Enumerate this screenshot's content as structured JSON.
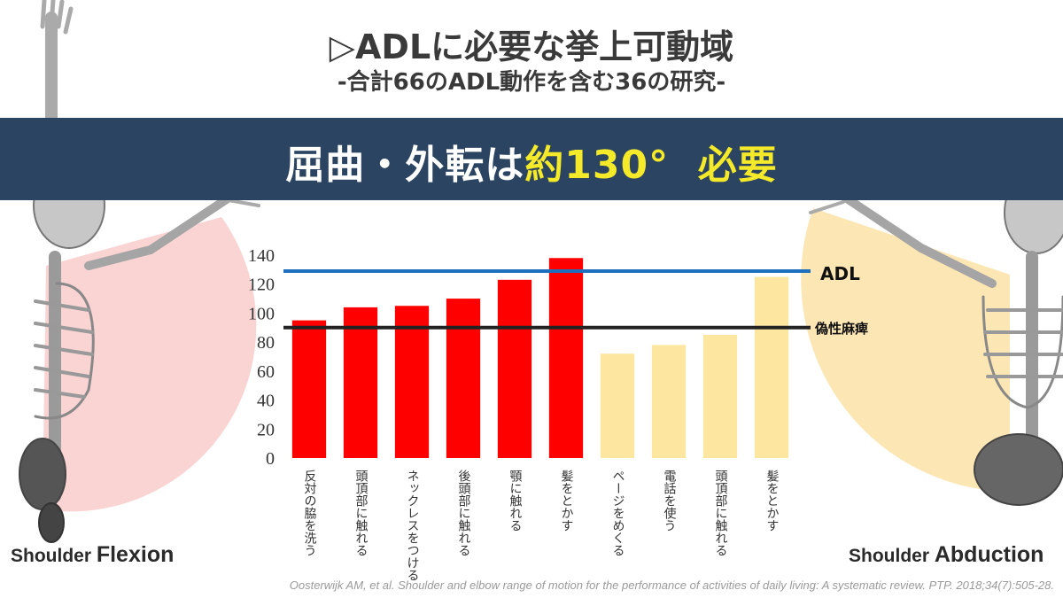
{
  "header": {
    "title": "▷ADLに必要な挙上可動域",
    "subtitle": "-合計66のADL動作を含む36の研究-"
  },
  "banner": {
    "text_part1": "屈曲・外転は",
    "text_highlight": "約130°",
    "text_part2": "必要",
    "background_color": "#2b4461",
    "highlight_color": "#f5ea2a"
  },
  "left_figure": {
    "label_prefix": "Shoulder ",
    "label_main": "Flexion"
  },
  "right_figure": {
    "label_prefix": "Shoulder ",
    "label_main": "Abduction"
  },
  "citation": "Oosterwijk AM, et al. Shoulder and elbow range of motion for the performance of activities of daily living: A systematic review. PTP. 2018;34(7):505-28.",
  "chart_data": {
    "type": "bar",
    "categories": [
      "反対の脇を洗う",
      "頭頂部に触れる",
      "ネックレスをつける",
      "後頭部に触れる",
      "顎に触れる",
      "髪をとかす",
      "ページをめくる",
      "電話を使う",
      "頭頂部に触れる",
      "髪をとかす"
    ],
    "values": [
      95,
      104,
      105,
      110,
      123,
      138,
      72,
      78,
      85,
      125
    ],
    "bar_colors": [
      "#ff0000",
      "#ff0000",
      "#ff0000",
      "#ff0000",
      "#ff0000",
      "#ff0000",
      "#fde6a0",
      "#fde6a0",
      "#fde6a0",
      "#fde6a0"
    ],
    "ylim": [
      0,
      140
    ],
    "yticks": [
      "0",
      "20",
      "40",
      "60",
      "80",
      "100",
      "120",
      "140"
    ],
    "grid": false,
    "reference_lines": [
      {
        "label": "ADL",
        "value": 129,
        "color": "#1f6fbf"
      },
      {
        "label": "偽性麻痺",
        "value": 90,
        "color": "#222222"
      }
    ]
  }
}
